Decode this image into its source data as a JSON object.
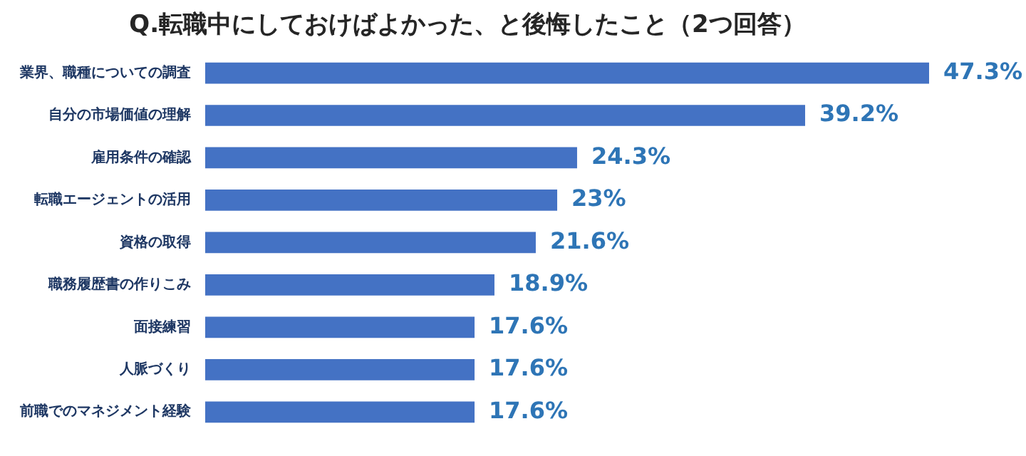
{
  "chart_data": {
    "type": "bar",
    "orientation": "horizontal",
    "title": "Q.転職中にしておけばよかった、と後悔したこと（2つ回答）",
    "categories": [
      "業界、職種についての調査",
      "自分の市場価値の理解",
      "雇用条件の確認",
      "転職エージェントの活用",
      "資格の取得",
      "職務履歴書の作りこみ",
      "面接練習",
      "人脈づくり",
      "前職でのマネジメント経験"
    ],
    "values": [
      47.3,
      39.2,
      24.3,
      23,
      21.6,
      18.9,
      17.6,
      17.6,
      17.6
    ],
    "value_labels": [
      "47.3%",
      "39.2%",
      "24.3%",
      "23%",
      "21.6%",
      "18.9%",
      "17.6%",
      "17.6%",
      "17.6%"
    ],
    "color": "#4472c4",
    "tick_labels": "y",
    "grid": false,
    "legend": false
  }
}
